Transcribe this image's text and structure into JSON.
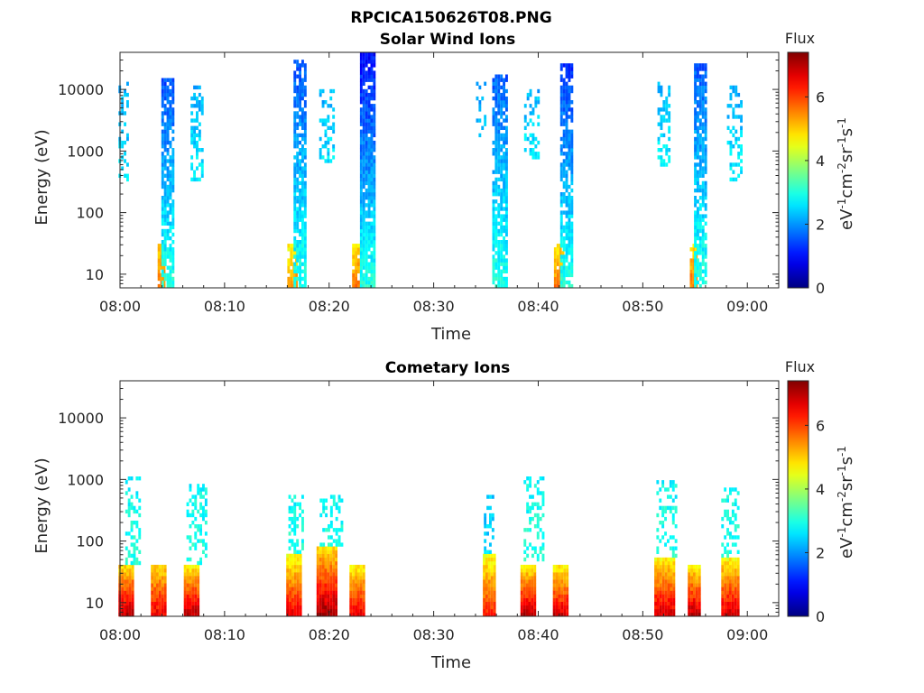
{
  "figure": {
    "title": "RPCICA150626T08.PNG"
  },
  "chart_data": [
    {
      "type": "heatmap",
      "title": "Solar Wind Ions",
      "xlabel": "Time",
      "ylabel": "Energy (eV)",
      "x_ticks": [
        "08:00",
        "08:10",
        "08:20",
        "08:30",
        "08:40",
        "08:50",
        "09:00"
      ],
      "x_range_minutes": [
        0,
        63
      ],
      "y_scale": "log",
      "y_ticks": [
        "10",
        "100",
        "1000",
        "10000"
      ],
      "ylim": [
        6,
        40000
      ],
      "colorbar": {
        "label": "Flux",
        "units": "eV",
        "units_cm": "cm",
        "units_sr": "sr",
        "units_s": "s",
        "units_exp": "-1",
        "units_exp2": "-2",
        "ticks": [
          "0",
          "2",
          "4",
          "6"
        ],
        "range": [
          0,
          7.4
        ],
        "colormap": "jet"
      },
      "bursts": [
        {
          "t": 0.3,
          "w": 0.9,
          "lo": 300,
          "hi": 12000,
          "low_flux": 2.6,
          "high_flux": 2.2,
          "density": 0.35
        },
        {
          "t": 3.9,
          "w": 0.6,
          "lo": 6,
          "hi": 30,
          "low_flux": 5.6,
          "high_flux": 5.0,
          "density": 0.9
        },
        {
          "t": 4.5,
          "w": 1.1,
          "lo": 6,
          "hi": 15000,
          "low_flux": 3.0,
          "high_flux": 1.5,
          "density": 0.8
        },
        {
          "t": 7.3,
          "w": 1.1,
          "lo": 300,
          "hi": 11000,
          "low_flux": 2.7,
          "high_flux": 2.2,
          "density": 0.45
        },
        {
          "t": 16.4,
          "w": 0.8,
          "lo": 6,
          "hi": 30,
          "low_flux": 5.4,
          "high_flux": 4.6,
          "density": 0.9
        },
        {
          "t": 17.2,
          "w": 1.2,
          "lo": 6,
          "hi": 28000,
          "low_flux": 3.0,
          "high_flux": 1.5,
          "density": 0.8
        },
        {
          "t": 19.8,
          "w": 1.5,
          "lo": 600,
          "hi": 10000,
          "low_flux": 2.6,
          "high_flux": 2.2,
          "density": 0.35
        },
        {
          "t": 22.6,
          "w": 0.8,
          "lo": 6,
          "hi": 30,
          "low_flux": 5.6,
          "high_flux": 4.8,
          "density": 0.9
        },
        {
          "t": 23.6,
          "w": 1.3,
          "lo": 6,
          "hi": 35000,
          "low_flux": 3.0,
          "high_flux": 1.0,
          "density": 0.9
        },
        {
          "t": 34.5,
          "w": 0.9,
          "lo": 1500,
          "hi": 12000,
          "low_flux": 2.4,
          "high_flux": 2.0,
          "density": 0.3
        },
        {
          "t": 36.3,
          "w": 1.4,
          "lo": 6,
          "hi": 16000,
          "low_flux": 3.0,
          "high_flux": 1.6,
          "density": 0.8
        },
        {
          "t": 39.3,
          "w": 1.3,
          "lo": 700,
          "hi": 10000,
          "low_flux": 2.7,
          "high_flux": 2.2,
          "density": 0.4
        },
        {
          "t": 41.9,
          "w": 0.8,
          "lo": 6,
          "hi": 30,
          "low_flux": 5.5,
          "high_flux": 4.8,
          "density": 0.9
        },
        {
          "t": 42.7,
          "w": 1.2,
          "lo": 6,
          "hi": 25000,
          "low_flux": 3.0,
          "high_flux": 1.3,
          "density": 0.8
        },
        {
          "t": 52.0,
          "w": 1.2,
          "lo": 500,
          "hi": 12000,
          "low_flux": 2.7,
          "high_flux": 2.2,
          "density": 0.4
        },
        {
          "t": 54.8,
          "w": 0.6,
          "lo": 6,
          "hi": 30,
          "low_flux": 5.6,
          "high_flux": 4.8,
          "density": 0.9
        },
        {
          "t": 55.5,
          "w": 1.2,
          "lo": 6,
          "hi": 25000,
          "low_flux": 3.0,
          "high_flux": 1.6,
          "density": 0.8
        },
        {
          "t": 58.8,
          "w": 1.5,
          "lo": 300,
          "hi": 11000,
          "low_flux": 2.7,
          "high_flux": 2.2,
          "density": 0.4
        }
      ]
    },
    {
      "type": "heatmap",
      "title": "Cometary Ions",
      "xlabel": "Time",
      "ylabel": "Energy (eV)",
      "x_ticks": [
        "08:00",
        "08:10",
        "08:20",
        "08:30",
        "08:40",
        "08:50",
        "09:00"
      ],
      "x_range_minutes": [
        0,
        63
      ],
      "y_scale": "log",
      "y_ticks": [
        "10",
        "100",
        "1000",
        "10000"
      ],
      "ylim": [
        6,
        40000
      ],
      "colorbar": {
        "label": "Flux",
        "units": "eV",
        "units_cm": "cm",
        "units_sr": "sr",
        "units_s": "s",
        "units_exp": "-1",
        "units_exp2": "-2",
        "ticks": [
          "0",
          "2",
          "4",
          "6"
        ],
        "range": [
          0,
          7.4
        ],
        "colormap": "jet"
      },
      "bursts": [
        {
          "t": 0.5,
          "w": 1.3,
          "lo": 6,
          "hi": 40,
          "low_flux": 7.0,
          "high_flux": 4.8,
          "density": 1.0
        },
        {
          "t": 1.2,
          "w": 1.4,
          "lo": 40,
          "hi": 1000,
          "low_flux": 3.0,
          "high_flux": 2.8,
          "density": 0.35
        },
        {
          "t": 3.6,
          "w": 1.3,
          "lo": 6,
          "hi": 40,
          "low_flux": 6.6,
          "high_flux": 4.8,
          "density": 1.0
        },
        {
          "t": 6.8,
          "w": 1.4,
          "lo": 6,
          "hi": 40,
          "low_flux": 7.0,
          "high_flux": 4.6,
          "density": 1.0
        },
        {
          "t": 7.3,
          "w": 1.9,
          "lo": 40,
          "hi": 750,
          "low_flux": 3.0,
          "high_flux": 2.8,
          "density": 0.4
        },
        {
          "t": 16.6,
          "w": 1.4,
          "lo": 6,
          "hi": 60,
          "low_flux": 6.6,
          "high_flux": 4.5,
          "density": 1.0
        },
        {
          "t": 16.8,
          "w": 1.4,
          "lo": 60,
          "hi": 500,
          "low_flux": 3.0,
          "high_flux": 2.8,
          "density": 0.4
        },
        {
          "t": 19.8,
          "w": 2.0,
          "lo": 6,
          "hi": 80,
          "low_flux": 7.2,
          "high_flux": 4.8,
          "density": 1.0
        },
        {
          "t": 20.2,
          "w": 2.2,
          "lo": 80,
          "hi": 500,
          "low_flux": 3.0,
          "high_flux": 2.8,
          "density": 0.4
        },
        {
          "t": 22.6,
          "w": 1.3,
          "lo": 6,
          "hi": 40,
          "low_flux": 6.6,
          "high_flux": 4.6,
          "density": 1.0
        },
        {
          "t": 35.3,
          "w": 1.2,
          "lo": 6,
          "hi": 60,
          "low_flux": 6.2,
          "high_flux": 4.5,
          "density": 1.0
        },
        {
          "t": 35.3,
          "w": 1.0,
          "lo": 60,
          "hi": 500,
          "low_flux": 2.6,
          "high_flux": 2.3,
          "density": 0.4
        },
        {
          "t": 39.0,
          "w": 1.4,
          "lo": 6,
          "hi": 40,
          "low_flux": 7.0,
          "high_flux": 4.6,
          "density": 1.0
        },
        {
          "t": 39.5,
          "w": 1.8,
          "lo": 40,
          "hi": 1100,
          "low_flux": 3.0,
          "high_flux": 2.8,
          "density": 0.35
        },
        {
          "t": 42.1,
          "w": 1.4,
          "lo": 6,
          "hi": 40,
          "low_flux": 6.8,
          "high_flux": 4.6,
          "density": 1.0
        },
        {
          "t": 52.0,
          "w": 1.8,
          "lo": 6,
          "hi": 50,
          "low_flux": 6.8,
          "high_flux": 4.6,
          "density": 1.0
        },
        {
          "t": 52.3,
          "w": 2.0,
          "lo": 50,
          "hi": 900,
          "low_flux": 3.0,
          "high_flux": 2.8,
          "density": 0.35
        },
        {
          "t": 54.9,
          "w": 1.2,
          "lo": 6,
          "hi": 40,
          "low_flux": 7.0,
          "high_flux": 4.6,
          "density": 1.0
        },
        {
          "t": 58.3,
          "w": 1.6,
          "lo": 6,
          "hi": 50,
          "low_flux": 6.8,
          "high_flux": 4.6,
          "density": 1.0
        },
        {
          "t": 58.3,
          "w": 1.6,
          "lo": 50,
          "hi": 650,
          "low_flux": 3.0,
          "high_flux": 2.8,
          "density": 0.35
        }
      ]
    }
  ]
}
